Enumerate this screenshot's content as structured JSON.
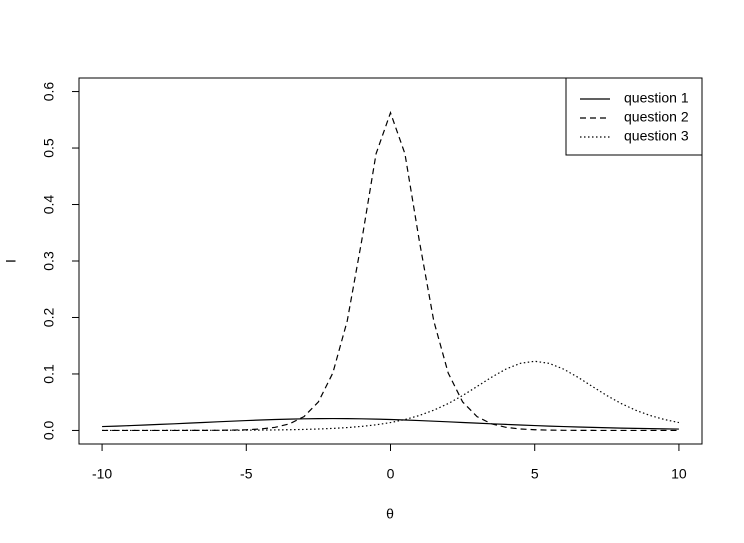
{
  "chart_data": {
    "type": "line",
    "xlabel": "θ",
    "ylabel": "I",
    "x": [
      -10,
      -9.5,
      -9,
      -8.5,
      -8,
      -7.5,
      -7,
      -6.5,
      -6,
      -5.5,
      -5,
      -4.5,
      -4,
      -3.5,
      -3,
      -2.5,
      -2,
      -1.5,
      -1,
      -0.5,
      0,
      0.5,
      1,
      1.5,
      2,
      2.5,
      3,
      3.5,
      4,
      4.5,
      5,
      5.5,
      6,
      6.5,
      7,
      7.5,
      8,
      8.5,
      9,
      9.5,
      10
    ],
    "series": [
      {
        "name": "question 1",
        "color": "#000000",
        "line_style": "solid",
        "values": [
          0.00685,
          0.0077,
          0.00863,
          0.00962,
          0.01068,
          0.01179,
          0.01294,
          0.01411,
          0.01528,
          0.01642,
          0.0175,
          0.01849,
          0.01935,
          0.02006,
          0.02059,
          0.02092,
          0.02103,
          0.02092,
          0.02059,
          0.02006,
          0.01935,
          0.01849,
          0.0175,
          0.01642,
          0.01528,
          0.01411,
          0.01294,
          0.01179,
          0.01068,
          0.00962,
          0.00863,
          0.0077,
          0.00685,
          0.00607,
          0.00537,
          0.00473,
          0.00416,
          0.00365,
          0.0032,
          0.00279,
          0.00244
        ]
      },
      {
        "name": "question 2",
        "color": "#000000",
        "line_style": "dashed",
        "values": [
          0,
          0,
          0,
          0,
          1e-05,
          3e-05,
          6e-05,
          0.00013,
          0.00028,
          0.00059,
          0.00124,
          0.00263,
          0.00555,
          0.01168,
          0.0245,
          0.0505,
          0.1017,
          0.194,
          0.3355,
          0.49,
          0.5625,
          0.49,
          0.3355,
          0.194,
          0.1017,
          0.0505,
          0.0245,
          0.01168,
          0.00555,
          0.00263,
          0.00124,
          0.00059,
          0.00028,
          0.00013,
          6e-05,
          3e-05,
          1e-05,
          0,
          0,
          0,
          0
        ]
      },
      {
        "name": "question 3",
        "color": "#000000",
        "line_style": "dotted",
        "values": [
          1e-05,
          2e-05,
          3e-05,
          4e-05,
          5e-05,
          8e-05,
          0.00011,
          0.00016,
          0.00022,
          0.00031,
          0.00045,
          0.00063,
          0.0009,
          0.00127,
          0.0018,
          0.00254,
          0.0036,
          0.00507,
          0.00714,
          0.01,
          0.01394,
          0.0193,
          0.0265,
          0.0358,
          0.0476,
          0.0618,
          0.0778,
          0.0941,
          0.1086,
          0.1188,
          0.1225,
          0.1188,
          0.1086,
          0.0941,
          0.0778,
          0.0618,
          0.0476,
          0.0358,
          0.0265,
          0.0193,
          0.01394
        ]
      }
    ],
    "xlim": [
      -10.8,
      10.8
    ],
    "xticks": [
      -10,
      -5,
      0,
      5,
      10
    ],
    "ylim": [
      -0.024,
      0.624
    ],
    "yticks": [
      {
        "value": 0,
        "label": "0.0"
      },
      0.1,
      0.2,
      0.3,
      0.4,
      0.5,
      0.6
    ],
    "grid": false,
    "legend": "top-right"
  }
}
